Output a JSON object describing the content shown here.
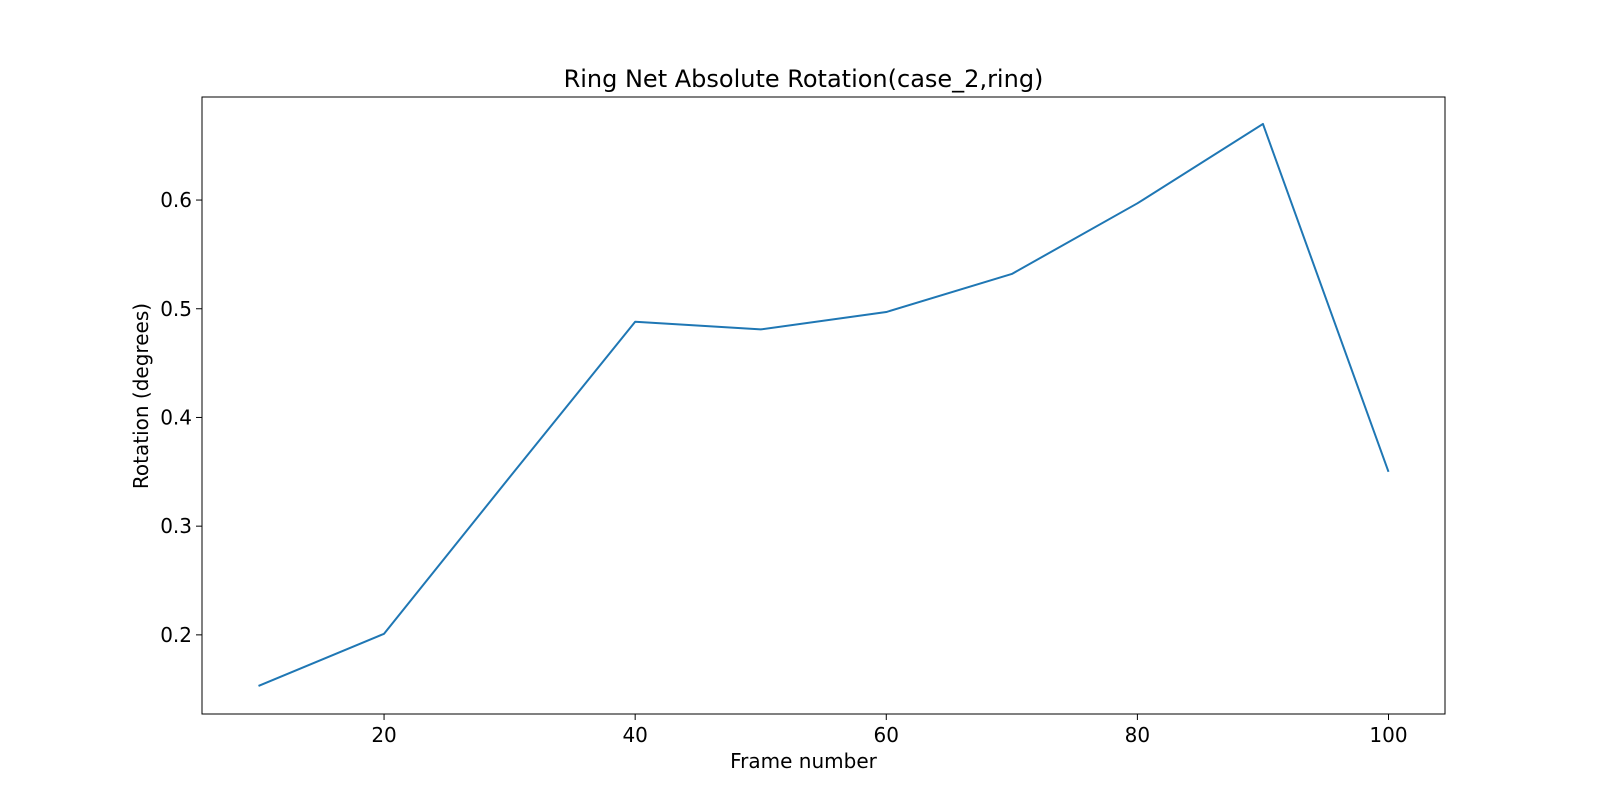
{
  "chart_data": {
    "type": "line",
    "title": "Ring Net Absolute Rotation(case_2,ring)",
    "xlabel": "Frame number",
    "ylabel": "Rotation (degrees)",
    "x": [
      10,
      20,
      30,
      40,
      50,
      60,
      70,
      80,
      90,
      100
    ],
    "series": [
      {
        "values": [
          0.153,
          0.201,
          0.345,
          0.488,
          0.481,
          0.497,
          0.532,
          0.597,
          0.67,
          0.35
        ],
        "color": "#1f77b4"
      }
    ],
    "xlim": [
      5.5,
      104.5
    ],
    "ylim": [
      0.1272,
      0.6948
    ],
    "xticks": [
      20,
      40,
      60,
      80,
      100
    ],
    "xtick_labels": [
      "20",
      "40",
      "60",
      "80",
      "100"
    ],
    "yticks": [
      0.2,
      0.3,
      0.4,
      0.5,
      0.6
    ],
    "ytick_labels": [
      "0.2",
      "0.3",
      "0.4",
      "0.5",
      "0.6"
    ],
    "grid": false,
    "legend": "none"
  }
}
